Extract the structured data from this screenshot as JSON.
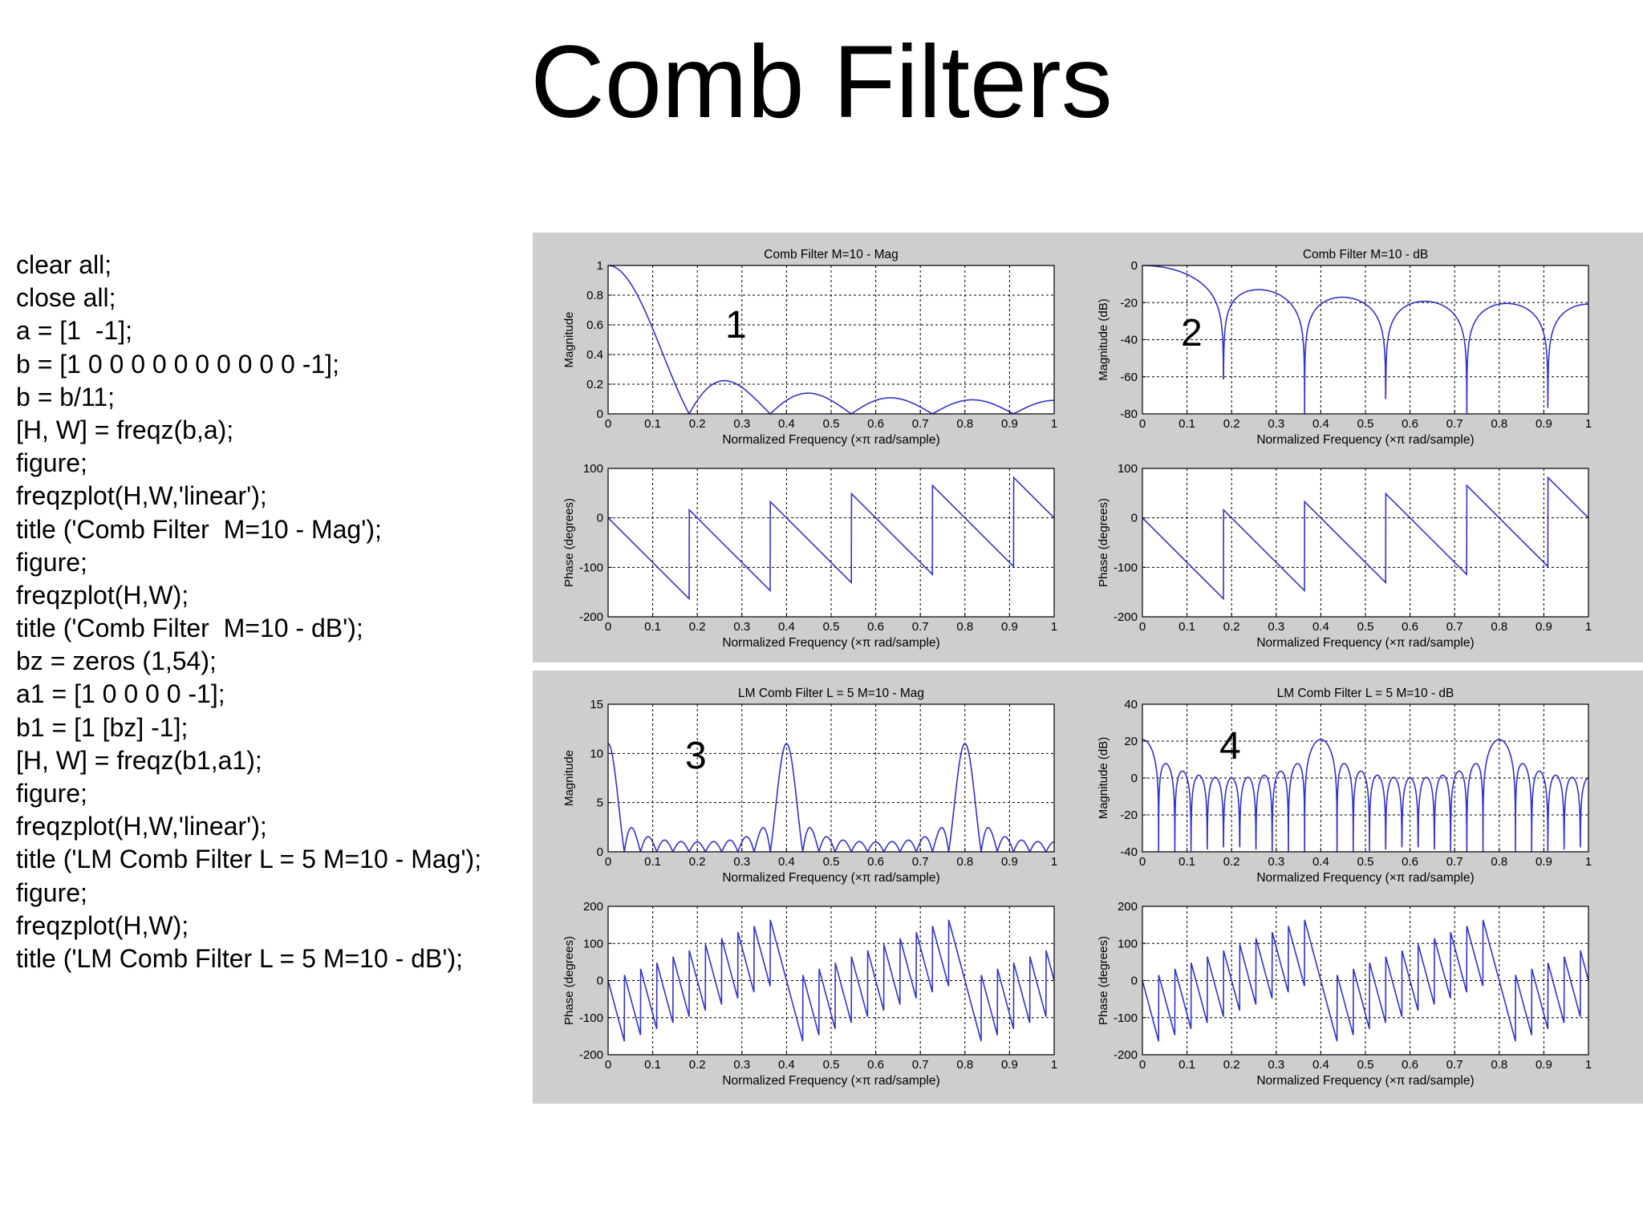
{
  "page": {
    "title": "Comb Filters",
    "code_lines": [
      "clear all;",
      "close all;",
      "a = [1  -1];",
      "b = [1 0 0 0 0 0 0 0 0 0 0 -1];",
      "b = b/11;",
      "[H, W] = freqz(b,a);",
      "figure;",
      "freqzplot(H,W,'linear');",
      "title ('Comb Filter  M=10 - Mag');",
      "figure;",
      "freqzplot(H,W);",
      "title ('Comb Filter  M=10 - dB');",
      "bz = zeros (1,54);",
      "a1 = [1 0 0 0 0 -1];",
      "b1 = [1 [bz] -1];",
      "[H, W] = freqz(b1,a1);",
      "figure;",
      "freqzplot(H,W,'linear');",
      "title ('LM Comb Filter L = 5 M=10 - Mag');",
      "figure;",
      "freqzplot(H,W);",
      "title ('LM Comb Filter L = 5 M=10 - dB');"
    ]
  },
  "colors": {
    "trace": "#3333cc",
    "panel": "#cecece",
    "plot_bg": "#ffffff",
    "axis": "#000000"
  },
  "chart_data": [
    {
      "id": "fig1-mag",
      "type": "line",
      "figure_number": "1",
      "title": "Comb Filter  M=10 - Mag",
      "xlabel": "Normalized Frequency  (×π rad/sample)",
      "ylabel": "Magnitude",
      "xlim": [
        0,
        1
      ],
      "ylim": [
        0,
        1
      ],
      "xticks": [
        0,
        0.1,
        0.2,
        0.3,
        0.4,
        0.5,
        0.6,
        0.7,
        0.8,
        0.9,
        1
      ],
      "xticklabels": [
        "0",
        "0.1",
        "0.2",
        "0.3",
        "0.4",
        "0.5",
        "0.6",
        "0.7",
        "0.8",
        "0.9",
        "1"
      ],
      "yticks": [
        0,
        0.2,
        0.4,
        0.6,
        0.8,
        1
      ],
      "yticklabels": [
        "0",
        "0.2",
        "0.4",
        "0.6",
        "0.8",
        "1"
      ],
      "grid": true,
      "series": [
        {
          "function": "comb-magnitude",
          "filter": {
            "L": 1,
            "M": 10
          }
        }
      ]
    },
    {
      "id": "fig1-phase",
      "type": "line",
      "xlabel": "Normalized Frequency  (×π rad/sample)",
      "ylabel": "Phase (degrees)",
      "xlim": [
        0,
        1
      ],
      "ylim": [
        -200,
        100
      ],
      "xticks": [
        0,
        0.1,
        0.2,
        0.3,
        0.4,
        0.5,
        0.6,
        0.7,
        0.8,
        0.9,
        1
      ],
      "xticklabels": [
        "0",
        "0.1",
        "0.2",
        "0.3",
        "0.4",
        "0.5",
        "0.6",
        "0.7",
        "0.8",
        "0.9",
        "1"
      ],
      "yticks": [
        -200,
        -100,
        0,
        100
      ],
      "yticklabels": [
        "-200",
        "-100",
        "0",
        "100"
      ],
      "grid": true,
      "series": [
        {
          "function": "comb-phase",
          "filter": {
            "L": 1,
            "M": 10
          }
        }
      ]
    },
    {
      "id": "fig2-db",
      "type": "line",
      "figure_number": "2",
      "title": "Comb Filter  M=10 - dB",
      "xlabel": "Normalized Frequency  (×π rad/sample)",
      "ylabel": "Magnitude (dB)",
      "xlim": [
        0,
        1
      ],
      "ylim": [
        -80,
        0
      ],
      "xticks": [
        0,
        0.1,
        0.2,
        0.3,
        0.4,
        0.5,
        0.6,
        0.7,
        0.8,
        0.9,
        1
      ],
      "xticklabels": [
        "0",
        "0.1",
        "0.2",
        "0.3",
        "0.4",
        "0.5",
        "0.6",
        "0.7",
        "0.8",
        "0.9",
        "1"
      ],
      "yticks": [
        -80,
        -60,
        -40,
        -20,
        0
      ],
      "yticklabels": [
        "-80",
        "-60",
        "-40",
        "-20",
        "0"
      ],
      "grid": true,
      "series": [
        {
          "function": "comb-db",
          "filter": {
            "L": 1,
            "M": 10
          }
        }
      ]
    },
    {
      "id": "fig2-phase",
      "type": "line",
      "xlabel": "Normalized Frequency  (×π rad/sample)",
      "ylabel": "Phase (degrees)",
      "xlim": [
        0,
        1
      ],
      "ylim": [
        -200,
        100
      ],
      "xticks": [
        0,
        0.1,
        0.2,
        0.3,
        0.4,
        0.5,
        0.6,
        0.7,
        0.8,
        0.9,
        1
      ],
      "xticklabels": [
        "0",
        "0.1",
        "0.2",
        "0.3",
        "0.4",
        "0.5",
        "0.6",
        "0.7",
        "0.8",
        "0.9",
        "1"
      ],
      "yticks": [
        -200,
        -100,
        0,
        100
      ],
      "yticklabels": [
        "-200",
        "-100",
        "0",
        "100"
      ],
      "grid": true,
      "series": [
        {
          "function": "comb-phase",
          "filter": {
            "L": 1,
            "M": 10
          }
        }
      ]
    },
    {
      "id": "fig3-mag",
      "type": "line",
      "figure_number": "3",
      "title": "LM Comb Filter L = 5 M=10 - Mag",
      "xlabel": "Normalized Frequency  (×π rad/sample)",
      "ylabel": "Magnitude",
      "xlim": [
        0,
        1
      ],
      "ylim": [
        0,
        15
      ],
      "xticks": [
        0,
        0.1,
        0.2,
        0.3,
        0.4,
        0.5,
        0.6,
        0.7,
        0.8,
        0.9,
        1
      ],
      "xticklabels": [
        "0",
        "0.1",
        "0.2",
        "0.3",
        "0.4",
        "0.5",
        "0.6",
        "0.7",
        "0.8",
        "0.9",
        "1"
      ],
      "yticks": [
        0,
        5,
        10,
        15
      ],
      "yticklabels": [
        "0",
        "5",
        "10",
        "15"
      ],
      "grid": true,
      "series": [
        {
          "function": "comb-magnitude",
          "filter": {
            "L": 5,
            "M": 10
          }
        }
      ]
    },
    {
      "id": "fig3-phase",
      "type": "line",
      "xlabel": "Normalized Frequency  (×π rad/sample)",
      "ylabel": "Phase (degrees)",
      "xlim": [
        0,
        1
      ],
      "ylim": [
        -200,
        200
      ],
      "xticks": [
        0,
        0.1,
        0.2,
        0.3,
        0.4,
        0.5,
        0.6,
        0.7,
        0.8,
        0.9,
        1
      ],
      "xticklabels": [
        "0",
        "0.1",
        "0.2",
        "0.3",
        "0.4",
        "0.5",
        "0.6",
        "0.7",
        "0.8",
        "0.9",
        "1"
      ],
      "yticks": [
        -200,
        -100,
        0,
        100,
        200
      ],
      "yticklabels": [
        "-200",
        "-100",
        "0",
        "100",
        "200"
      ],
      "grid": true,
      "series": [
        {
          "function": "comb-phase",
          "filter": {
            "L": 5,
            "M": 10
          }
        }
      ]
    },
    {
      "id": "fig4-db",
      "type": "line",
      "figure_number": "4",
      "title": "LM Comb Filter L = 5 M=10 - dB",
      "xlabel": "Normalized Frequency  (×π rad/sample)",
      "ylabel": "Magnitude (dB)",
      "xlim": [
        0,
        1
      ],
      "ylim": [
        -40,
        40
      ],
      "xticks": [
        0,
        0.1,
        0.2,
        0.3,
        0.4,
        0.5,
        0.6,
        0.7,
        0.8,
        0.9,
        1
      ],
      "xticklabels": [
        "0",
        "0.1",
        "0.2",
        "0.3",
        "0.4",
        "0.5",
        "0.6",
        "0.7",
        "0.8",
        "0.9",
        "1"
      ],
      "yticks": [
        -40,
        -20,
        0,
        20,
        40
      ],
      "yticklabels": [
        "-40",
        "-20",
        "0",
        "20",
        "40"
      ],
      "grid": true,
      "series": [
        {
          "function": "comb-db",
          "filter": {
            "L": 5,
            "M": 10
          }
        }
      ]
    },
    {
      "id": "fig4-phase",
      "type": "line",
      "xlabel": "Normalized Frequency  (×π rad/sample)",
      "ylabel": "Phase (degrees)",
      "xlim": [
        0,
        1
      ],
      "ylim": [
        -200,
        200
      ],
      "xticks": [
        0,
        0.1,
        0.2,
        0.3,
        0.4,
        0.5,
        0.6,
        0.7,
        0.8,
        0.9,
        1
      ],
      "xticklabels": [
        "0",
        "0.1",
        "0.2",
        "0.3",
        "0.4",
        "0.5",
        "0.6",
        "0.7",
        "0.8",
        "0.9",
        "1"
      ],
      "yticks": [
        -200,
        -100,
        0,
        100,
        200
      ],
      "yticklabels": [
        "-200",
        "-100",
        "0",
        "100",
        "200"
      ],
      "grid": true,
      "series": [
        {
          "function": "comb-phase",
          "filter": {
            "L": 5,
            "M": 10
          }
        }
      ]
    }
  ]
}
